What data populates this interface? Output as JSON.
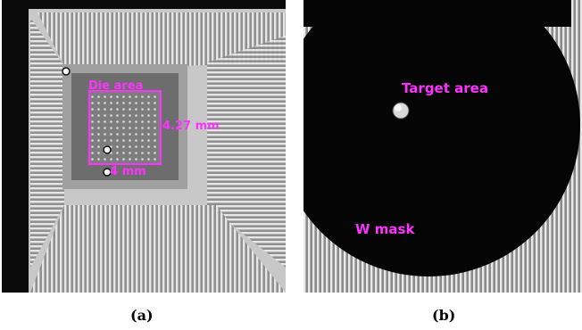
{
  "figure": {
    "panel_a": {
      "caption": "(a)",
      "labels": {
        "die_area": "Die area",
        "height": "4.27 mm",
        "width": "4 mm"
      },
      "annotation_color": "#ff33ff"
    },
    "panel_b": {
      "caption": "(b)",
      "labels": {
        "target_area": "Target area",
        "mask": "W mask"
      },
      "annotation_color": "#ff33ff"
    }
  }
}
